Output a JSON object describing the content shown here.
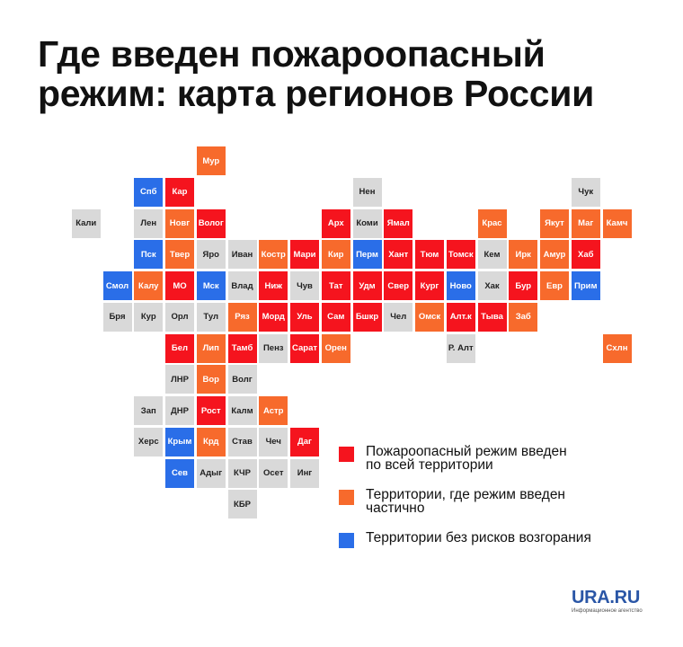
{
  "title": {
    "line1": "Где введен пожароопасный",
    "line2": "режим: карта регионов России"
  },
  "colors": {
    "full": "#f5141e",
    "partial": "#f76a2c",
    "none": "#2a6ee8",
    "nodata": "#d9d9d9"
  },
  "legend": [
    {
      "status": "full",
      "line1": "Пожароопасный режим введен",
      "line2": "по всей территории"
    },
    {
      "status": "partial",
      "line1": "Территории, где режим введен",
      "line2": "частично"
    },
    {
      "status": "none",
      "line1": "Территории без рисков возгорания",
      "line2": ""
    }
  ],
  "regions": [
    {
      "label": "Мур",
      "status": "partial",
      "col": 5,
      "row": 0
    },
    {
      "label": "Спб",
      "status": "none",
      "col": 3,
      "row": 1
    },
    {
      "label": "Кар",
      "status": "full",
      "col": 4,
      "row": 1
    },
    {
      "label": "Нен",
      "status": "nodata",
      "col": 10,
      "row": 1
    },
    {
      "label": "Чук",
      "status": "nodata",
      "col": 17,
      "row": 1
    },
    {
      "label": "Кали",
      "status": "nodata",
      "col": 1,
      "row": 2
    },
    {
      "label": "Лен",
      "status": "nodata",
      "col": 3,
      "row": 2
    },
    {
      "label": "Новг",
      "status": "partial",
      "col": 4,
      "row": 2
    },
    {
      "label": "Волог",
      "status": "full",
      "col": 5,
      "row": 2
    },
    {
      "label": "Арх",
      "status": "full",
      "col": 9,
      "row": 2
    },
    {
      "label": "Коми",
      "status": "nodata",
      "col": 10,
      "row": 2
    },
    {
      "label": "Ямал",
      "status": "full",
      "col": 11,
      "row": 2
    },
    {
      "label": "Крас",
      "status": "partial",
      "col": 14,
      "row": 2
    },
    {
      "label": "Якут",
      "status": "partial",
      "col": 16,
      "row": 2
    },
    {
      "label": "Маг",
      "status": "partial",
      "col": 17,
      "row": 2
    },
    {
      "label": "Камч",
      "status": "partial",
      "col": 18,
      "row": 2
    },
    {
      "label": "Пск",
      "status": "none",
      "col": 3,
      "row": 3
    },
    {
      "label": "Твер",
      "status": "partial",
      "col": 4,
      "row": 3
    },
    {
      "label": "Яро",
      "status": "nodata",
      "col": 5,
      "row": 3
    },
    {
      "label": "Иван",
      "status": "nodata",
      "col": 6,
      "row": 3
    },
    {
      "label": "Костр",
      "status": "partial",
      "col": 7,
      "row": 3
    },
    {
      "label": "Мари",
      "status": "full",
      "col": 8,
      "row": 3
    },
    {
      "label": "Кир",
      "status": "partial",
      "col": 9,
      "row": 3
    },
    {
      "label": "Перм",
      "status": "none",
      "col": 10,
      "row": 3
    },
    {
      "label": "Хант",
      "status": "full",
      "col": 11,
      "row": 3
    },
    {
      "label": "Тюм",
      "status": "full",
      "col": 12,
      "row": 3
    },
    {
      "label": "Томск",
      "status": "full",
      "col": 13,
      "row": 3
    },
    {
      "label": "Кем",
      "status": "nodata",
      "col": 14,
      "row": 3
    },
    {
      "label": "Ирк",
      "status": "partial",
      "col": 15,
      "row": 3
    },
    {
      "label": "Амур",
      "status": "partial",
      "col": 16,
      "row": 3
    },
    {
      "label": "Хаб",
      "status": "full",
      "col": 17,
      "row": 3
    },
    {
      "label": "Смол",
      "status": "none",
      "col": 2,
      "row": 4
    },
    {
      "label": "Калу",
      "status": "partial",
      "col": 3,
      "row": 4
    },
    {
      "label": "МО",
      "status": "full",
      "col": 4,
      "row": 4
    },
    {
      "label": "Мск",
      "status": "none",
      "col": 5,
      "row": 4
    },
    {
      "label": "Влад",
      "status": "nodata",
      "col": 6,
      "row": 4
    },
    {
      "label": "Ниж",
      "status": "full",
      "col": 7,
      "row": 4
    },
    {
      "label": "Чув",
      "status": "nodata",
      "col": 8,
      "row": 4
    },
    {
      "label": "Тат",
      "status": "full",
      "col": 9,
      "row": 4
    },
    {
      "label": "Удм",
      "status": "full",
      "col": 10,
      "row": 4
    },
    {
      "label": "Свер",
      "status": "full",
      "col": 11,
      "row": 4
    },
    {
      "label": "Кург",
      "status": "full",
      "col": 12,
      "row": 4
    },
    {
      "label": "Ново",
      "status": "none",
      "col": 13,
      "row": 4
    },
    {
      "label": "Хак",
      "status": "nodata",
      "col": 14,
      "row": 4
    },
    {
      "label": "Бур",
      "status": "full",
      "col": 15,
      "row": 4
    },
    {
      "label": "Евр",
      "status": "partial",
      "col": 16,
      "row": 4
    },
    {
      "label": "Прим",
      "status": "none",
      "col": 17,
      "row": 4
    },
    {
      "label": "Бря",
      "status": "nodata",
      "col": 2,
      "row": 5
    },
    {
      "label": "Кур",
      "status": "nodata",
      "col": 3,
      "row": 5
    },
    {
      "label": "Орл",
      "status": "nodata",
      "col": 4,
      "row": 5
    },
    {
      "label": "Тул",
      "status": "nodata",
      "col": 5,
      "row": 5
    },
    {
      "label": "Ряз",
      "status": "partial",
      "col": 6,
      "row": 5
    },
    {
      "label": "Морд",
      "status": "full",
      "col": 7,
      "row": 5
    },
    {
      "label": "Уль",
      "status": "full",
      "col": 8,
      "row": 5
    },
    {
      "label": "Сам",
      "status": "full",
      "col": 9,
      "row": 5
    },
    {
      "label": "Бшкр",
      "status": "full",
      "col": 10,
      "row": 5
    },
    {
      "label": "Чел",
      "status": "nodata",
      "col": 11,
      "row": 5
    },
    {
      "label": "Омск",
      "status": "partial",
      "col": 12,
      "row": 5
    },
    {
      "label": "Алт.к",
      "status": "full",
      "col": 13,
      "row": 5
    },
    {
      "label": "Тыва",
      "status": "full",
      "col": 14,
      "row": 5
    },
    {
      "label": "Заб",
      "status": "partial",
      "col": 15,
      "row": 5
    },
    {
      "label": "Бел",
      "status": "full",
      "col": 4,
      "row": 6
    },
    {
      "label": "Лип",
      "status": "partial",
      "col": 5,
      "row": 6
    },
    {
      "label": "Тамб",
      "status": "full",
      "col": 6,
      "row": 6
    },
    {
      "label": "Пенз",
      "status": "nodata",
      "col": 7,
      "row": 6
    },
    {
      "label": "Сарат",
      "status": "full",
      "col": 8,
      "row": 6
    },
    {
      "label": "Орен",
      "status": "partial",
      "col": 9,
      "row": 6
    },
    {
      "label": "Р. Алт",
      "status": "nodata",
      "col": 13,
      "row": 6
    },
    {
      "label": "Схлн",
      "status": "partial",
      "col": 18,
      "row": 6
    },
    {
      "label": "ЛНР",
      "status": "nodata",
      "col": 4,
      "row": 7
    },
    {
      "label": "Вор",
      "status": "partial",
      "col": 5,
      "row": 7
    },
    {
      "label": "Волг",
      "status": "nodata",
      "col": 6,
      "row": 7
    },
    {
      "label": "Зап",
      "status": "nodata",
      "col": 3,
      "row": 8
    },
    {
      "label": "ДНР",
      "status": "nodata",
      "col": 4,
      "row": 8
    },
    {
      "label": "Рост",
      "status": "full",
      "col": 5,
      "row": 8
    },
    {
      "label": "Калм",
      "status": "nodata",
      "col": 6,
      "row": 8
    },
    {
      "label": "Астр",
      "status": "partial",
      "col": 7,
      "row": 8
    },
    {
      "label": "Херс",
      "status": "nodata",
      "col": 3,
      "row": 9
    },
    {
      "label": "Крым",
      "status": "none",
      "col": 4,
      "row": 9
    },
    {
      "label": "Крд",
      "status": "partial",
      "col": 5,
      "row": 9
    },
    {
      "label": "Став",
      "status": "nodata",
      "col": 6,
      "row": 9
    },
    {
      "label": "Чеч",
      "status": "nodata",
      "col": 7,
      "row": 9
    },
    {
      "label": "Даг",
      "status": "full",
      "col": 8,
      "row": 9
    },
    {
      "label": "Сев",
      "status": "none",
      "col": 4,
      "row": 10
    },
    {
      "label": "Адыг",
      "status": "nodata",
      "col": 5,
      "row": 10
    },
    {
      "label": "КЧР",
      "status": "nodata",
      "col": 6,
      "row": 10
    },
    {
      "label": "Осет",
      "status": "nodata",
      "col": 7,
      "row": 10
    },
    {
      "label": "Инг",
      "status": "nodata",
      "col": 8,
      "row": 10
    },
    {
      "label": "КБР",
      "status": "nodata",
      "col": 6,
      "row": 11
    }
  ],
  "brand": {
    "name": "URA.RU",
    "tagline": "Информационное агентство"
  }
}
